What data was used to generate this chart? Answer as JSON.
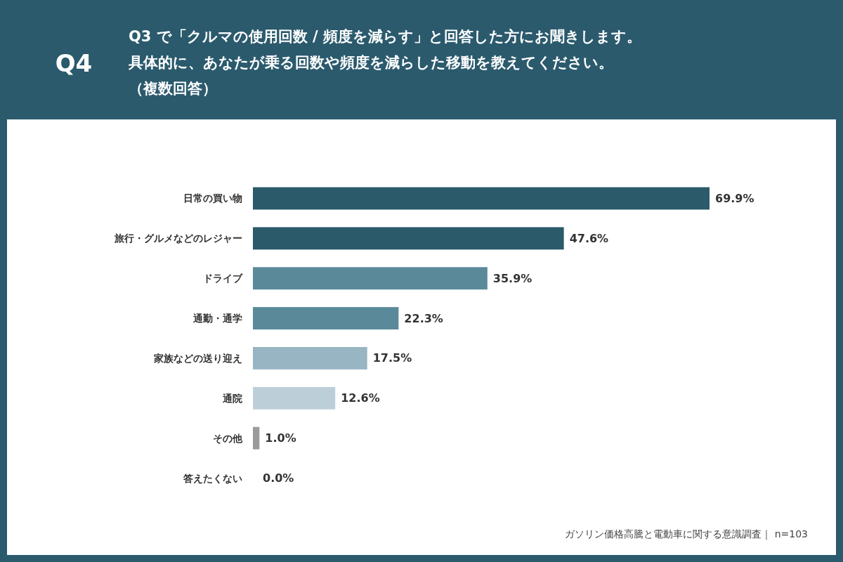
{
  "chart_data": {
    "type": "bar",
    "orientation": "horizontal",
    "title": "Q4",
    "subtitle": "Q3 で「クルマの使用回数 / 頻度を減らす」と回答した方にお聞きします。具体的に、あなたが乗る回数や頻度を減らした移動を教えてください。（複数回答）",
    "categories": [
      "日常の買い物",
      "旅行・グルメなどのレジャー",
      "ドライブ",
      "通勤・通学",
      "家族などの送り迎え",
      "通院",
      "その他",
      "答えたくない"
    ],
    "values": [
      69.9,
      47.6,
      35.9,
      22.3,
      17.5,
      12.6,
      1.0,
      0.0
    ],
    "colors": [
      "#2b5a6b",
      "#2b5a6b",
      "#5a8a9a",
      "#5a8a9a",
      "#97b5c3",
      "#bccfd9",
      "#9b9b9b",
      "#9b9b9b"
    ],
    "value_labels": [
      "69.9%",
      "47.6%",
      "35.9%",
      "22.3%",
      "17.5%",
      "12.6%",
      "1.0%",
      "0.0%"
    ],
    "annotations": [
      "ガソリン価格高騰と電動車に関する意識調査｜ n=103"
    ]
  }
}
